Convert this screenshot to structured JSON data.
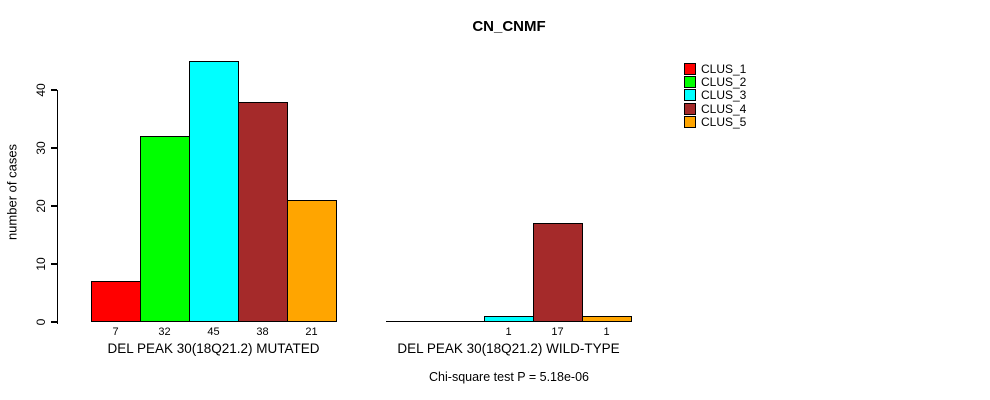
{
  "chart_data": {
    "type": "bar",
    "title": "CN_CNMF",
    "ylabel": "number of cases",
    "ylim": [
      0,
      45
    ],
    "yticks": [
      0,
      10,
      20,
      30,
      40
    ],
    "grid": false,
    "legend_position": "right-outside",
    "series": [
      {
        "name": "CLUS_1",
        "color": "#FF0000"
      },
      {
        "name": "CLUS_2",
        "color": "#00FF00"
      },
      {
        "name": "CLUS_3",
        "color": "#00FFFF"
      },
      {
        "name": "CLUS_4",
        "color": "#A52A2A"
      },
      {
        "name": "CLUS_5",
        "color": "#FFA500"
      }
    ],
    "groups": [
      {
        "label": "DEL PEAK 30(18Q21.2) MUTATED",
        "values": [
          7,
          32,
          45,
          38,
          21
        ]
      },
      {
        "label": "DEL PEAK 30(18Q21.2) WILD-TYPE",
        "values": [
          0,
          0,
          1,
          17,
          1
        ]
      }
    ],
    "bar_value_labels_shown_when": "value > 0",
    "footnote": "Chi-square test P = 5.18e-06"
  }
}
